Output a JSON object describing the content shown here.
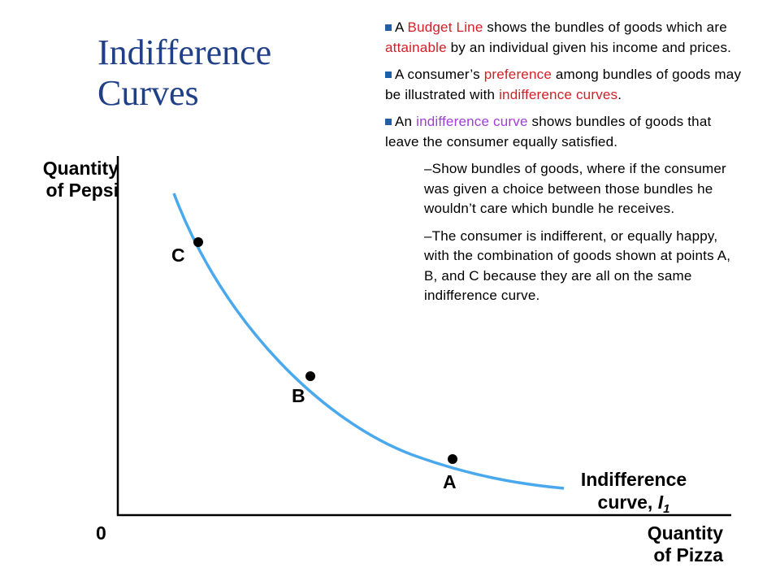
{
  "title": {
    "line1": "Indifference",
    "line2": "Curves"
  },
  "colors": {
    "title": "#1f3f86",
    "bullet_square": "#1f5fa8",
    "curve": "#4aa8ec",
    "highlight_red": "#d21f26",
    "highlight_purple": "#a03ed8"
  },
  "bullets": [
    {
      "parts": [
        {
          "text": "A ",
          "color": ""
        },
        {
          "text": "Budget Line",
          "color": "red"
        },
        {
          "text": " shows the bundles of goods which are ",
          "color": ""
        },
        {
          "text": "attainable",
          "color": "red"
        },
        {
          "text": " by an individual given his income and prices.",
          "color": ""
        }
      ]
    },
    {
      "parts": [
        {
          "text": "A consumer’s ",
          "color": ""
        },
        {
          "text": "preference",
          "color": "red"
        },
        {
          "text": " among bundles of goods may be illustrated with ",
          "color": ""
        },
        {
          "text": "indifference curves",
          "color": "red"
        },
        {
          "text": ".",
          "color": ""
        }
      ]
    },
    {
      "parts": [
        {
          "text": "An ",
          "color": ""
        },
        {
          "text": "indifference curve",
          "color": "purple"
        },
        {
          "text": " shows bundles of goods that leave the consumer equally satisfied.",
          "color": ""
        }
      ]
    }
  ],
  "sub_bullets": [
    "–Show bundles of goods, where if the consumer was given a choice between those bundles he wouldn’t care which bundle he receives.",
    "–The consumer is indifferent, or equally happy, with the combination of goods shown at points A, B, and C because they are all on the same indifference curve."
  ],
  "diagram": {
    "y_axis_label_1": "Quantity",
    "y_axis_label_2": "of Pepsi",
    "x_axis_label_1": "Quantity",
    "x_axis_label_2": "of Pizza",
    "origin": "0",
    "curve_label_1": "Indifference",
    "curve_label_2_prefix": "curve, ",
    "curve_label_2_var": "I",
    "curve_label_2_sub": "1",
    "points": [
      {
        "label": "C"
      },
      {
        "label": "B"
      },
      {
        "label": "A"
      }
    ]
  }
}
